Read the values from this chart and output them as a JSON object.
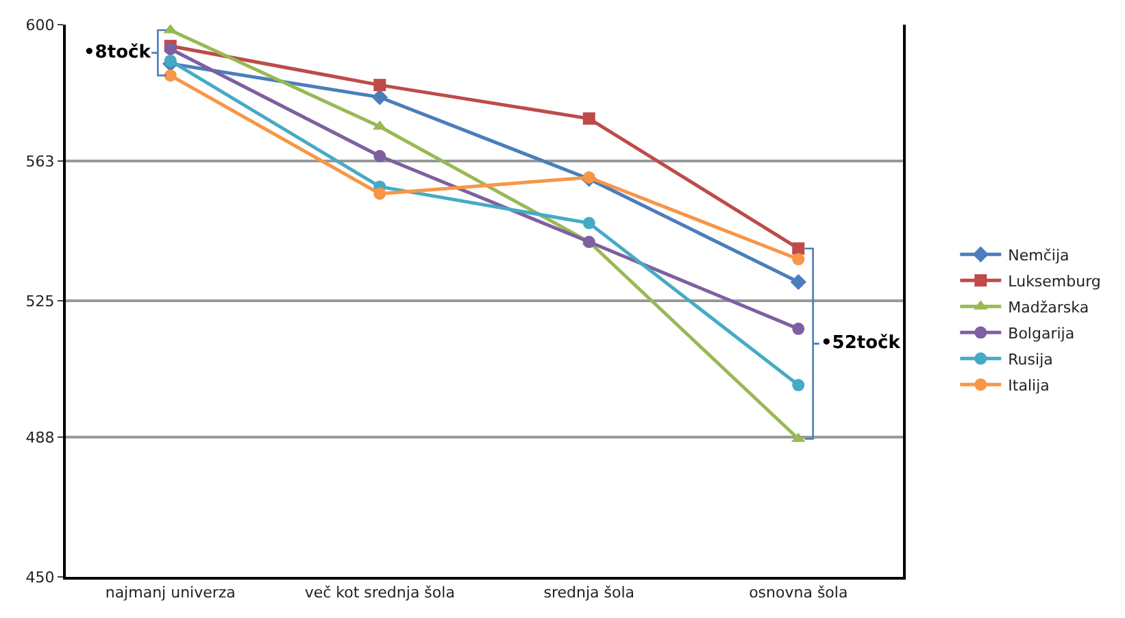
{
  "chart_data": {
    "type": "line",
    "categories": [
      "najmanj univerza",
      "več kot srednja šola",
      "srednja šola",
      "osnovna šola"
    ],
    "series": [
      {
        "name": "Nemčija",
        "color": "#4a7ebb",
        "marker": "diamond",
        "values": [
          589.4,
          580.3,
          558.1,
          530.1
        ]
      },
      {
        "name": "Luksemburg",
        "color": "#be4b48",
        "marker": "square",
        "values": [
          594.2,
          583.6,
          574.5,
          539.2
        ]
      },
      {
        "name": "Madžarska",
        "color": "#98b954",
        "marker": "triangle",
        "values": [
          598.5,
          572.3,
          541,
          487.5
        ]
      },
      {
        "name": "Bolgarija",
        "color": "#7d60a0",
        "marker": "circle",
        "values": [
          593.4,
          564.3,
          541,
          517.4
        ]
      },
      {
        "name": "Rusija",
        "color": "#46aac5",
        "marker": "circle",
        "values": [
          590.2,
          556,
          546.1,
          502.1
        ]
      },
      {
        "name": "Italija",
        "color": "#f79646",
        "marker": "circle",
        "values": [
          586.2,
          554.1,
          558.5,
          536.3
        ]
      }
    ],
    "ylim": [
      450,
      600
    ],
    "yticks": [
      450,
      488,
      525,
      563,
      600
    ],
    "grid": "y",
    "legend": "right",
    "line_style": "solid",
    "annotations": [
      "•8točk",
      "•52točk"
    ]
  }
}
